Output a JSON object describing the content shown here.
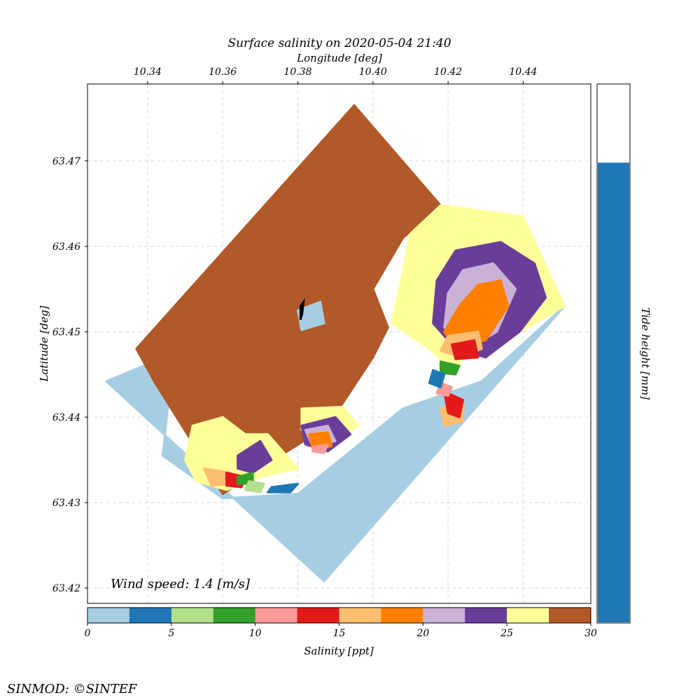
{
  "chart_data": {
    "type": "heatmap",
    "title": "Surface salinity on 2020-05-04 21:40",
    "xlabel": "Longitude [deg]",
    "ylabel": "Latitude [deg]",
    "xlim": [
      10.324,
      10.458
    ],
    "ylim": [
      63.4182,
      63.479
    ],
    "xticks": [
      "10.34",
      "10.36",
      "10.38",
      "10.40",
      "10.42",
      "10.44"
    ],
    "xtick_values": [
      10.34,
      10.36,
      10.38,
      10.4,
      10.42,
      10.44
    ],
    "yticks": [
      "63.42",
      "63.43",
      "63.44",
      "63.45",
      "63.46",
      "63.47"
    ],
    "ytick_values": [
      63.42,
      63.43,
      63.44,
      63.45,
      63.46,
      63.47
    ],
    "grid": true,
    "annotation": "Wind speed: 1.4 [m/s]",
    "wind_arrow": {
      "lon": 10.381,
      "lat": 63.4514,
      "direction": "north"
    },
    "domain_outline": [
      [
        10.395,
        63.4765
      ],
      [
        10.418,
        63.4648
      ],
      [
        10.44,
        63.4635
      ],
      [
        10.451,
        63.453
      ],
      [
        10.387,
        63.4208
      ],
      [
        10.329,
        63.4442
      ],
      [
        10.337,
        63.448
      ]
    ],
    "regions": [
      {
        "class": 0,
        "polygon": [
          [
            10.347,
            63.4475
          ],
          [
            10.329,
            63.4442
          ],
          [
            10.387,
            63.4208
          ],
          [
            10.451,
            63.453
          ],
          [
            10.429,
            63.4442
          ],
          [
            10.408,
            63.441
          ],
          [
            10.38,
            63.431
          ],
          [
            10.36,
            63.4305
          ],
          [
            10.344,
            63.4355
          ]
        ]
      },
      {
        "class": 11,
        "polygon": [
          [
            10.395,
            63.4765
          ],
          [
            10.418,
            63.4648
          ],
          [
            10.408,
            63.461
          ],
          [
            10.4,
            63.455
          ],
          [
            10.404,
            63.4505
          ],
          [
            10.4,
            63.447
          ],
          [
            10.388,
            63.439
          ],
          [
            10.37,
            63.434
          ],
          [
            10.36,
            63.431
          ],
          [
            10.352,
            63.437
          ],
          [
            10.342,
            63.444
          ],
          [
            10.337,
            63.448
          ]
        ]
      },
      {
        "class": 10,
        "polygon": [
          [
            10.418,
            63.4648
          ],
          [
            10.44,
            63.4635
          ],
          [
            10.451,
            63.453
          ],
          [
            10.437,
            63.4495
          ],
          [
            10.427,
            63.448
          ],
          [
            10.421,
            63.4455
          ],
          [
            10.415,
            63.448
          ],
          [
            10.405,
            63.451
          ],
          [
            10.408,
            63.457
          ],
          [
            10.41,
            63.4615
          ]
        ]
      },
      {
        "class": 10,
        "polygon": [
          [
            10.352,
            63.439
          ],
          [
            10.36,
            63.44
          ],
          [
            10.366,
            63.438
          ],
          [
            10.372,
            63.438
          ],
          [
            10.38,
            63.434
          ],
          [
            10.37,
            63.433
          ],
          [
            10.361,
            63.4315
          ],
          [
            10.353,
            63.4325
          ],
          [
            10.35,
            63.435
          ]
        ]
      },
      {
        "class": 10,
        "polygon": [
          [
            10.381,
            63.441
          ],
          [
            10.392,
            63.4412
          ],
          [
            10.396,
            63.439
          ],
          [
            10.39,
            63.4372
          ],
          [
            10.381,
            63.4385
          ]
        ]
      },
      {
        "class": 9,
        "polygon": [
          [
            10.422,
            63.4595
          ],
          [
            10.434,
            63.4605
          ],
          [
            10.443,
            63.458
          ],
          [
            10.446,
            63.454
          ],
          [
            10.439,
            63.45
          ],
          [
            10.43,
            63.447
          ],
          [
            10.422,
            63.448
          ],
          [
            10.416,
            63.451
          ],
          [
            10.417,
            63.456
          ]
        ]
      },
      {
        "class": 9,
        "polygon": [
          [
            10.381,
            63.439
          ],
          [
            10.39,
            63.44
          ],
          [
            10.394,
            63.438
          ],
          [
            10.388,
            63.436
          ],
          [
            10.382,
            63.4368
          ]
        ]
      },
      {
        "class": 9,
        "polygon": [
          [
            10.364,
            63.4355
          ],
          [
            10.37,
            63.4372
          ],
          [
            10.373,
            63.435
          ],
          [
            10.368,
            63.4335
          ],
          [
            10.364,
            63.434
          ]
        ]
      },
      {
        "class": 8,
        "polygon": [
          [
            10.424,
            63.4572
          ],
          [
            10.432,
            63.458
          ],
          [
            10.438,
            63.455
          ],
          [
            10.433,
            63.45
          ],
          [
            10.425,
            63.448
          ],
          [
            10.419,
            63.4505
          ],
          [
            10.42,
            63.4545
          ]
        ]
      },
      {
        "class": 8,
        "polygon": [
          [
            10.382,
            63.4385
          ],
          [
            10.388,
            63.439
          ],
          [
            10.39,
            63.4372
          ],
          [
            10.384,
            63.4365
          ]
        ]
      },
      {
        "class": 7,
        "polygon": [
          [
            10.428,
            63.4555
          ],
          [
            10.434,
            63.456
          ],
          [
            10.436,
            63.453
          ],
          [
            10.43,
            63.449
          ],
          [
            10.422,
            63.448
          ],
          [
            10.419,
            63.45
          ],
          [
            10.423,
            63.453
          ]
        ]
      },
      {
        "class": 7,
        "polygon": [
          [
            10.383,
            63.438
          ],
          [
            10.388,
            63.4382
          ],
          [
            10.389,
            63.4366
          ],
          [
            10.384,
            63.4362
          ]
        ]
      },
      {
        "class": 6,
        "polygon": [
          [
            10.42,
            63.4495
          ],
          [
            10.428,
            63.45
          ],
          [
            10.429,
            63.448
          ],
          [
            10.423,
            63.447
          ],
          [
            10.418,
            63.4478
          ]
        ]
      },
      {
        "class": 6,
        "polygon": [
          [
            10.418,
            63.441
          ],
          [
            10.424,
            63.442
          ],
          [
            10.424,
            63.4395
          ],
          [
            10.419,
            63.439
          ]
        ]
      },
      {
        "class": 6,
        "polygon": [
          [
            10.355,
            63.434
          ],
          [
            10.362,
            63.4335
          ],
          [
            10.364,
            63.4322
          ],
          [
            10.357,
            63.432
          ]
        ]
      },
      {
        "class": 5,
        "polygon": [
          [
            10.421,
            63.4485
          ],
          [
            10.427,
            63.449
          ],
          [
            10.428,
            63.447
          ],
          [
            10.422,
            63.4468
          ]
        ]
      },
      {
        "class": 5,
        "polygon": [
          [
            10.419,
            63.443
          ],
          [
            10.424,
            63.442
          ],
          [
            10.423,
            63.44
          ],
          [
            10.42,
            63.4405
          ]
        ]
      },
      {
        "class": 5,
        "polygon": [
          [
            10.361,
            63.4335
          ],
          [
            10.366,
            63.433
          ],
          [
            10.365,
            63.4318
          ],
          [
            10.361,
            63.432
          ]
        ]
      },
      {
        "class": 4,
        "polygon": [
          [
            10.418,
            63.444
          ],
          [
            10.421,
            63.4435
          ],
          [
            10.42,
            63.4425
          ],
          [
            10.417,
            63.4428
          ]
        ]
      },
      {
        "class": 4,
        "polygon": [
          [
            10.384,
            63.4365
          ],
          [
            10.388,
            63.4368
          ],
          [
            10.387,
            63.4358
          ],
          [
            10.384,
            63.436
          ]
        ]
      },
      {
        "class": 3,
        "polygon": [
          [
            10.418,
            63.4465
          ],
          [
            10.423,
            63.446
          ],
          [
            10.422,
            63.445
          ],
          [
            10.418,
            63.4452
          ]
        ]
      },
      {
        "class": 3,
        "polygon": [
          [
            10.364,
            63.433
          ],
          [
            10.368,
            63.4335
          ],
          [
            10.368,
            63.4322
          ],
          [
            10.364,
            63.4322
          ]
        ]
      },
      {
        "class": 2,
        "polygon": [
          [
            10.367,
            63.4325
          ],
          [
            10.371,
            63.4322
          ],
          [
            10.37,
            63.4312
          ],
          [
            10.366,
            63.4315
          ]
        ]
      },
      {
        "class": 1,
        "polygon": [
          [
            10.416,
            63.4455
          ],
          [
            10.419,
            63.445
          ],
          [
            10.418,
            63.4435
          ],
          [
            10.415,
            63.444
          ]
        ]
      },
      {
        "class": 1,
        "polygon": [
          [
            10.373,
            63.4318
          ],
          [
            10.38,
            63.4322
          ],
          [
            10.378,
            63.4312
          ],
          [
            10.372,
            63.4312
          ]
        ]
      },
      {
        "class": 0,
        "polygon": [
          [
            10.38,
            63.4525
          ],
          [
            10.386,
            63.4535
          ],
          [
            10.387,
            63.451
          ],
          [
            10.381,
            63.4502
          ]
        ]
      }
    ],
    "colorbar": {
      "label": "Salinity [ppt]",
      "range": [
        0,
        30
      ],
      "ticks": [
        "0",
        "5",
        "10",
        "15",
        "20",
        "25",
        "30"
      ],
      "tick_values": [
        0,
        5,
        10,
        15,
        20,
        25,
        30
      ],
      "colors": [
        "#a6cee3",
        "#1f78b4",
        "#b2df8a",
        "#33a02c",
        "#fb9a99",
        "#e31a1c",
        "#fdbf6f",
        "#ff7f00",
        "#cab2d6",
        "#6a3d9a",
        "#ffff99",
        "#b15928"
      ]
    },
    "tide_bar": {
      "label": "Tide height [mm]",
      "fraction": 0.855,
      "color": "#1f78b4"
    }
  },
  "footer": {
    "credit": "SINMOD: ©SINTEF"
  }
}
